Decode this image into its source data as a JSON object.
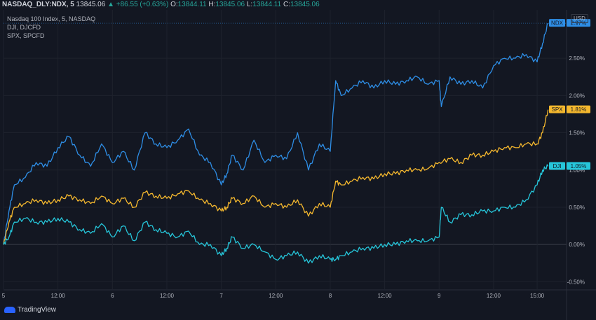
{
  "header": {
    "symbol": "NASDAQ_DLY:NDX, 5",
    "last": "13845.06",
    "change": "+86.55 (+0.63%)",
    "open_label": "O:",
    "open": "13844.11",
    "high_label": "H:",
    "high": "13845.06",
    "low_label": "L:",
    "low": "13844.11",
    "close_label": "C:",
    "close": "13845.06",
    "up_arrow": "▲"
  },
  "legend": {
    "line1": "Nasdaq 100 Index, 5, NASDAQ",
    "line2": "DJI, DJCFD",
    "line3": "SPX, SPCFD"
  },
  "currency": "USD",
  "brand": "TradingView",
  "colors": {
    "ndx": "#2e8ee6",
    "spx": "#f5b82e",
    "dji": "#26c6da",
    "bg": "#131722",
    "grid": "#1e222d"
  },
  "chart_data": {
    "type": "line",
    "ylim": [
      -0.6,
      3.15
    ],
    "yticks": [
      -0.5,
      0,
      0.5,
      1,
      1.5,
      2,
      2.5
    ],
    "ytick_labels": [
      "-0.50%",
      "0.00%",
      "0.50%",
      "1.00%",
      "1.50%",
      "2.00%",
      "2.50%"
    ],
    "xticks": [
      "5",
      "12:00",
      "6",
      "12:00",
      "7",
      "12:00",
      "8",
      "12:00",
      "9",
      "12:00",
      "15:00"
    ],
    "xtick_pos": [
      0,
      0.5,
      1,
      1.5,
      2,
      2.5,
      3,
      3.5,
      4,
      4.5,
      4.9
    ],
    "series": [
      {
        "name": "NDX",
        "badge": "2.97%",
        "last": 2.97,
        "x": [
          0,
          0.05,
          0.1,
          0.2,
          0.3,
          0.4,
          0.5,
          0.6,
          0.7,
          0.8,
          0.9,
          1.0,
          1.1,
          1.2,
          1.3,
          1.4,
          1.5,
          1.6,
          1.7,
          1.8,
          1.9,
          2.0,
          2.05,
          2.1,
          2.2,
          2.3,
          2.4,
          2.5,
          2.6,
          2.7,
          2.8,
          2.9,
          3.0,
          3.05,
          3.1,
          3.2,
          3.3,
          3.4,
          3.5,
          3.6,
          3.7,
          3.8,
          3.9,
          4.0,
          4.02,
          4.1,
          4.2,
          4.3,
          4.4,
          4.5,
          4.6,
          4.7,
          4.8,
          4.9,
          4.95,
          5.0
        ],
        "y": [
          0.0,
          0.45,
          0.8,
          0.9,
          1.1,
          1.05,
          1.3,
          1.45,
          1.2,
          1.05,
          1.35,
          1.1,
          1.25,
          1.0,
          1.5,
          1.35,
          1.3,
          1.4,
          1.55,
          1.2,
          1.1,
          0.8,
          0.95,
          1.2,
          1.0,
          1.4,
          1.1,
          1.2,
          1.15,
          1.5,
          1.0,
          1.35,
          1.25,
          2.2,
          2.0,
          2.1,
          2.2,
          2.1,
          2.2,
          2.15,
          2.2,
          2.25,
          2.15,
          2.2,
          1.85,
          2.25,
          2.15,
          2.2,
          2.1,
          2.4,
          2.5,
          2.5,
          2.55,
          2.45,
          2.7,
          2.97
        ]
      },
      {
        "name": "SPX",
        "badge": "1.81%",
        "last": 1.81,
        "x": [
          0,
          0.05,
          0.1,
          0.2,
          0.3,
          0.4,
          0.5,
          0.6,
          0.7,
          0.8,
          0.9,
          1.0,
          1.1,
          1.2,
          1.3,
          1.4,
          1.5,
          1.6,
          1.7,
          1.8,
          1.9,
          2.0,
          2.05,
          2.1,
          2.2,
          2.3,
          2.4,
          2.5,
          2.6,
          2.7,
          2.8,
          2.9,
          3.0,
          3.05,
          3.1,
          3.2,
          3.3,
          3.4,
          3.5,
          3.6,
          3.7,
          3.8,
          3.9,
          4.0,
          4.1,
          4.2,
          4.3,
          4.4,
          4.5,
          4.6,
          4.7,
          4.8,
          4.9,
          4.95,
          5.0
        ],
        "y": [
          0.0,
          0.3,
          0.5,
          0.55,
          0.6,
          0.55,
          0.6,
          0.65,
          0.6,
          0.55,
          0.65,
          0.55,
          0.62,
          0.5,
          0.7,
          0.65,
          0.62,
          0.68,
          0.72,
          0.6,
          0.55,
          0.45,
          0.5,
          0.62,
          0.55,
          0.65,
          0.5,
          0.55,
          0.5,
          0.6,
          0.38,
          0.55,
          0.5,
          0.85,
          0.8,
          0.85,
          0.9,
          0.88,
          0.95,
          0.95,
          1.0,
          1.0,
          1.02,
          1.1,
          1.15,
          1.1,
          1.2,
          1.2,
          1.25,
          1.3,
          1.3,
          1.35,
          1.35,
          1.5,
          1.81
        ]
      },
      {
        "name": "DJI",
        "badge": "1.05%",
        "last": 1.05,
        "x": [
          0,
          0.05,
          0.1,
          0.2,
          0.3,
          0.4,
          0.5,
          0.6,
          0.7,
          0.8,
          0.9,
          1.0,
          1.1,
          1.2,
          1.3,
          1.4,
          1.5,
          1.6,
          1.7,
          1.8,
          1.9,
          2.0,
          2.05,
          2.1,
          2.2,
          2.3,
          2.4,
          2.5,
          2.6,
          2.7,
          2.8,
          2.9,
          3.0,
          3.05,
          3.1,
          3.2,
          3.3,
          3.4,
          3.5,
          3.6,
          3.7,
          3.8,
          3.9,
          4.0,
          4.02,
          4.1,
          4.2,
          4.3,
          4.4,
          4.5,
          4.6,
          4.7,
          4.8,
          4.9,
          4.95,
          5.0
        ],
        "y": [
          0.0,
          0.1,
          0.3,
          0.35,
          0.3,
          0.3,
          0.35,
          0.3,
          0.2,
          0.15,
          0.28,
          0.1,
          0.25,
          0.05,
          0.3,
          0.2,
          0.15,
          0.1,
          0.18,
          0.0,
          0.0,
          -0.15,
          -0.05,
          0.1,
          -0.05,
          0.0,
          -0.1,
          -0.2,
          -0.15,
          -0.1,
          -0.25,
          -0.15,
          -0.2,
          -0.2,
          -0.15,
          -0.1,
          -0.05,
          -0.05,
          0.0,
          0.0,
          0.05,
          0.05,
          0.05,
          0.1,
          0.5,
          0.3,
          0.4,
          0.4,
          0.45,
          0.45,
          0.5,
          0.5,
          0.6,
          0.8,
          1.0,
          1.05
        ]
      }
    ]
  }
}
